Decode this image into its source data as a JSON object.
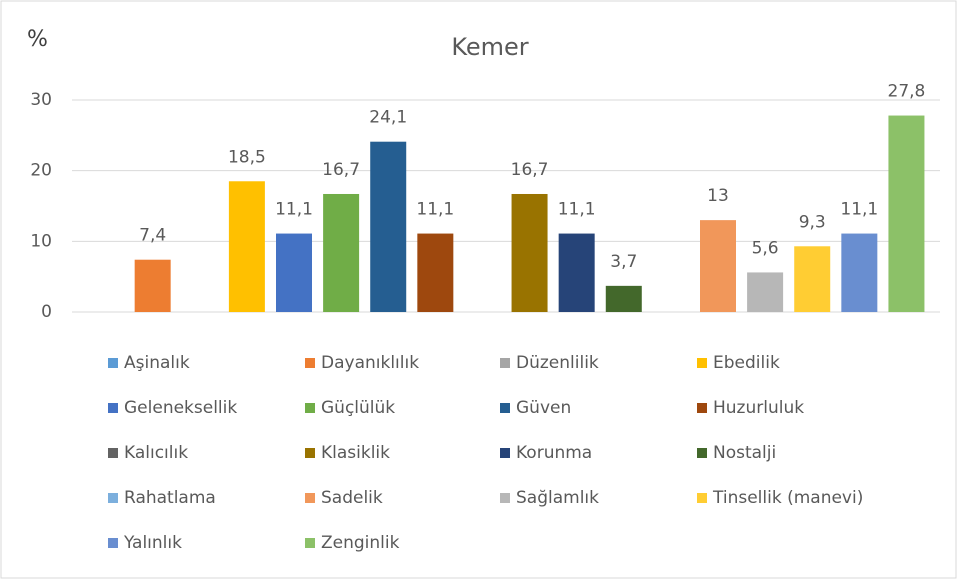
{
  "chart_data": {
    "type": "bar",
    "title": "Kemer",
    "y_label": "%",
    "categories": [
      null
    ],
    "ylim": [
      0,
      30
    ],
    "yticks": [
      0,
      10,
      20,
      30
    ],
    "grid": true,
    "series": [
      {
        "name": "Aşinalık",
        "color": "#5b9bd5",
        "values": [
          null
        ]
      },
      {
        "name": "Dayanıklılık",
        "color": "#ed7d31",
        "values": [
          7.4
        ],
        "value_labels": [
          "7,4"
        ]
      },
      {
        "name": "Düzenlilik",
        "color": "#a5a5a5",
        "values": [
          null
        ]
      },
      {
        "name": "Ebedilik",
        "color": "#ffc000",
        "values": [
          18.5
        ],
        "value_labels": [
          "18,5"
        ]
      },
      {
        "name": "Geleneksellik",
        "color": "#4472c4",
        "values": [
          11.1
        ],
        "value_labels": [
          "11,1"
        ]
      },
      {
        "name": "Güçlülük",
        "color": "#70ad47",
        "values": [
          16.7
        ],
        "value_labels": [
          "16,7"
        ]
      },
      {
        "name": "Güven",
        "color": "#255e91",
        "values": [
          24.1
        ],
        "value_labels": [
          "24,1"
        ]
      },
      {
        "name": "Huzurluluk",
        "color": "#9e480e",
        "values": [
          11.1
        ],
        "value_labels": [
          "11,1"
        ]
      },
      {
        "name": "Kalıcılık",
        "color": "#636363",
        "values": [
          null
        ]
      },
      {
        "name": "Klasiklik",
        "color": "#997300",
        "values": [
          16.7
        ],
        "value_labels": [
          "16,7"
        ]
      },
      {
        "name": "Korunma",
        "color": "#264478",
        "values": [
          11.1
        ],
        "value_labels": [
          "11,1"
        ]
      },
      {
        "name": "Nostalji",
        "color": "#43682b",
        "values": [
          3.7
        ],
        "value_labels": [
          "3,7"
        ]
      },
      {
        "name": "Rahatlama",
        "color": "#7cafdd",
        "values": [
          null
        ]
      },
      {
        "name": "Sadelik",
        "color": "#f1975a",
        "values": [
          13
        ]
      },
      {
        "name": "Sağlamlık",
        "color": "#b7b7b7",
        "values": [
          5.6
        ],
        "value_labels": [
          "5,6"
        ]
      },
      {
        "name": "Tinsellik (manevi)",
        "color": "#ffcd33",
        "values": [
          9.3
        ],
        "value_labels": [
          "9,3"
        ]
      },
      {
        "name": "Yalınlık",
        "color": "#698ed0",
        "values": [
          11.1
        ],
        "value_labels": [
          "11,1"
        ]
      },
      {
        "name": "Zenginlik",
        "color": "#8cc168",
        "values": [
          27.8
        ],
        "value_labels": [
          "27,8"
        ]
      }
    ]
  }
}
